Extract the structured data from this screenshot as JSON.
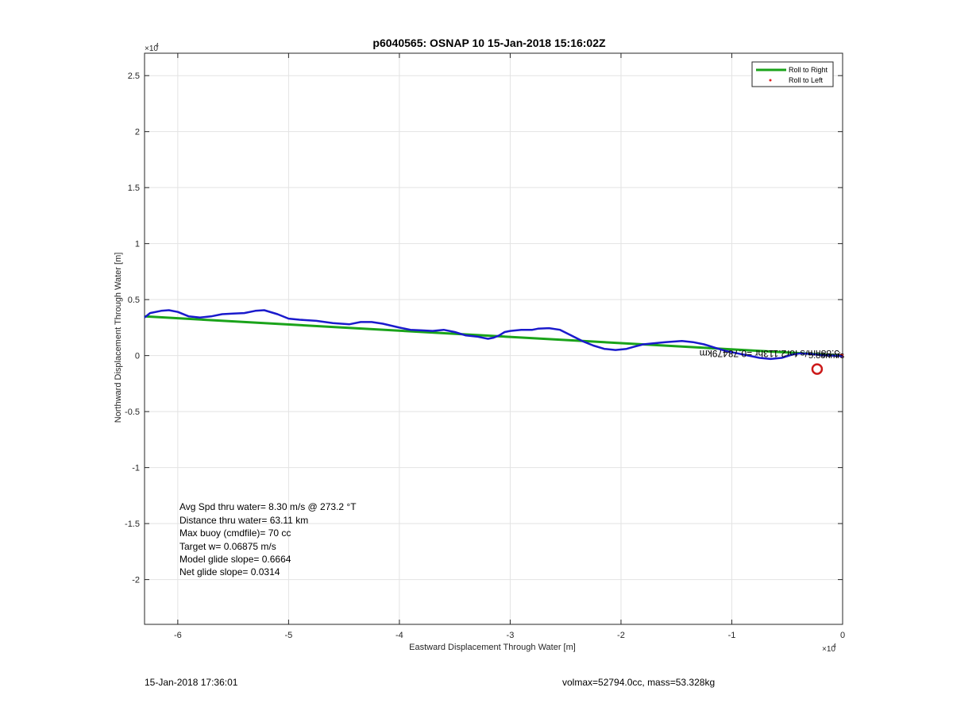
{
  "chart_data": {
    "type": "line",
    "title": "p6040565: OSNAP 10 15-Jan-2018 15:16:02Z",
    "xlabel": "Eastward Displacement Through Water [m]",
    "ylabel": "Northward Displacement Through Water [m]",
    "x_exponent_label": "×10",
    "y_exponent_label": "×10",
    "exponent": "4",
    "xlim": [
      -63000,
      0
    ],
    "ylim": [
      -24000,
      27000
    ],
    "xticks": [
      -60000,
      -50000,
      -40000,
      -30000,
      -20000,
      -10000,
      0
    ],
    "xtick_labels": [
      "-6",
      "-5",
      "-4",
      "-3",
      "-2",
      "-1",
      "0"
    ],
    "yticks": [
      -20000,
      -15000,
      -10000,
      -5000,
      0,
      5000,
      10000,
      15000,
      20000,
      25000
    ],
    "ytick_labels": [
      "-2",
      "-1.5",
      "-1",
      "-0.5",
      "0",
      "0.5",
      "1",
      "1.5",
      "2",
      "2.5"
    ],
    "grid": true,
    "legend_position": "top-right",
    "series": [
      {
        "name": "Roll to Right",
        "color": "#1aa31a",
        "style": "line",
        "x": [
          0,
          -63000
        ],
        "y": [
          0,
          3500
        ]
      },
      {
        "name": "Roll to Left",
        "color": "#e02020",
        "style": "dot",
        "x": [
          -100
        ],
        "y": [
          0
        ]
      },
      {
        "name": "",
        "color": "#1a1acc",
        "style": "line",
        "x": [
          -63000,
          -62500,
          -61500,
          -60800,
          -60000,
          -59000,
          -58000,
          -57000,
          -56000,
          -55000,
          -54000,
          -53000,
          -52200,
          -51000,
          -50000,
          -49000,
          -47500,
          -46000,
          -44500,
          -43500,
          -42500,
          -41500,
          -40000,
          -39000,
          -38000,
          -37000,
          -36000,
          -35000,
          -34000,
          -33000,
          -32000,
          -31500,
          -31000,
          -30500,
          -30000,
          -29000,
          -28000,
          -27500,
          -26500,
          -25500,
          -24500,
          -23500,
          -22500,
          -21500,
          -20500,
          -19500,
          -18800,
          -18000,
          -17000,
          -16000,
          -14500,
          -13500,
          -12500,
          -11500,
          -10500,
          -9500,
          -8500,
          -7500,
          -6500,
          -5500,
          -4500,
          -3800,
          -3000,
          -2000,
          -1000,
          0
        ],
        "y": [
          3400,
          3800,
          4000,
          4050,
          3900,
          3500,
          3400,
          3500,
          3700,
          3750,
          3800,
          4000,
          4050,
          3700,
          3300,
          3200,
          3100,
          2900,
          2800,
          3000,
          3000,
          2850,
          2500,
          2300,
          2250,
          2200,
          2300,
          2100,
          1800,
          1700,
          1500,
          1600,
          1800,
          2100,
          2200,
          2300,
          2300,
          2400,
          2450,
          2300,
          1800,
          1300,
          900,
          600,
          500,
          600,
          800,
          1000,
          1100,
          1200,
          1300,
          1200,
          1000,
          700,
          400,
          200,
          0,
          -200,
          -300,
          -200,
          100,
          200,
          150,
          50,
          0,
          -50
        ]
      }
    ],
    "start_marker": {
      "x": -2300,
      "y": -1200,
      "color": "#cc1a1a",
      "shape": "circle"
    },
    "annotations": {
      "mirrored_label": "5.88nm/s for2.113hr =0.78479km",
      "overlap_label": "5.88nm/s",
      "stats": [
        "Avg Spd thru water=  8.30 m/s @ 273.2 °T",
        "Distance thru water= 63.11 km",
        "Max buoy (cmdfile)= 70 cc",
        "Target w= 0.06875 m/s",
        "Model glide slope= 0.6664",
        "Net glide slope= 0.0314"
      ]
    }
  },
  "footer": {
    "left": "15-Jan-2018 17:36:01",
    "right": "volmax=52794.0cc, mass=53.328kg"
  }
}
